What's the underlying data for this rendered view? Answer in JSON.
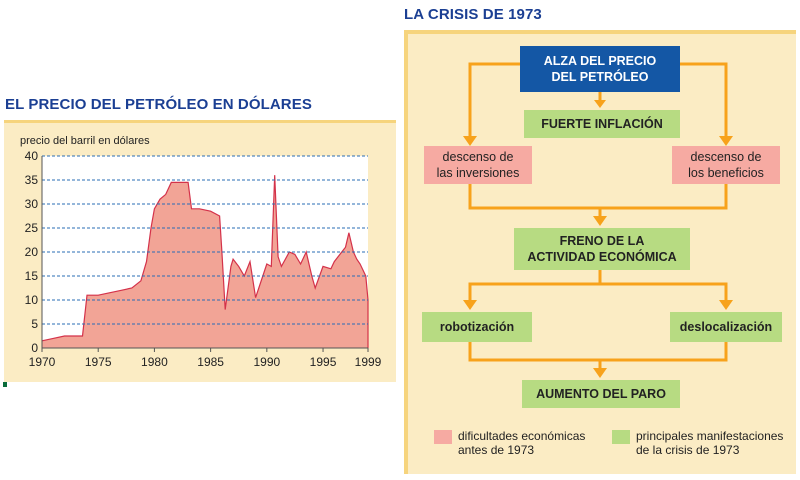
{
  "left": {
    "title": "EL PRECIO DEL PETRÓLEO EN DÓLARES"
  },
  "right": {
    "title": "LA CRISIS DE 1973",
    "boxes": {
      "alza": "ALZA DEL PRECIO\nDEL PETRÓLEO",
      "inflacion": "FUERTE INFLACIÓN",
      "inversiones": "descenso de\nlas inversiones",
      "beneficios": "descenso de\nlos beneficios",
      "freno": "FRENO DE LA\nACTIVIDAD ECONÓMICA",
      "robotizacion": "robotización",
      "deslocalizacion": "deslocalización",
      "paro": "AUMENTO DEL PARO"
    },
    "legend": {
      "pink": "dificultades económicas\nantes de 1973",
      "green": "principales manifestaciones\nde la crisis de 1973"
    }
  },
  "colors": {
    "panel": "#fbecc4",
    "panel_border": "#f6d47d",
    "area_fill": "#f2a496",
    "area_line": "#d4324a",
    "arrow": "#f7a21b",
    "green_box": "#b7db82",
    "pink_box": "#f6aaa2",
    "blue_box": "#1457a5",
    "title": "#1b3f93"
  },
  "chart_data": {
    "type": "area",
    "ylabel": "precio del barril en dólares",
    "xlim": [
      1970,
      1999
    ],
    "ylim": [
      0,
      40
    ],
    "x_ticks": [
      1970,
      1975,
      1980,
      1985,
      1990,
      1995,
      1999
    ],
    "y_ticks": [
      0,
      5,
      10,
      15,
      20,
      25,
      30,
      35,
      40
    ],
    "grid": true,
    "series": [
      {
        "x": [
          1970,
          1971,
          1972,
          1973.6,
          1974,
          1975,
          1976,
          1977,
          1978,
          1978.8,
          1979.3,
          1979.7,
          1980,
          1980.5,
          1981,
          1981.5,
          1982,
          1983,
          1983.3,
          1984,
          1985,
          1985.8,
          1986,
          1986.3,
          1986.8,
          1987,
          1987.5,
          1988,
          1988.5,
          1989,
          1990,
          1990.4,
          1990.7,
          1991,
          1991.3,
          1992,
          1992.5,
          1993,
          1993.5,
          1994,
          1994.3,
          1995,
          1995.7,
          1996,
          1996.5,
          1997,
          1997.3,
          1997.7,
          1998,
          1998.3,
          1998.8,
          1999
        ],
        "values": [
          1.5,
          2,
          2.5,
          2.5,
          11,
          11,
          11.5,
          12,
          12.5,
          14,
          18,
          25,
          29,
          31,
          32,
          34.5,
          34.5,
          34.5,
          29,
          29,
          28.5,
          27.5,
          20,
          8,
          17,
          18.5,
          17,
          15,
          18,
          10.5,
          17.5,
          17,
          36,
          19,
          17,
          20,
          19.5,
          17.5,
          20,
          15,
          12.5,
          17,
          16.5,
          18,
          19.5,
          21,
          24,
          20,
          18.5,
          17.5,
          15,
          10
        ]
      }
    ]
  }
}
